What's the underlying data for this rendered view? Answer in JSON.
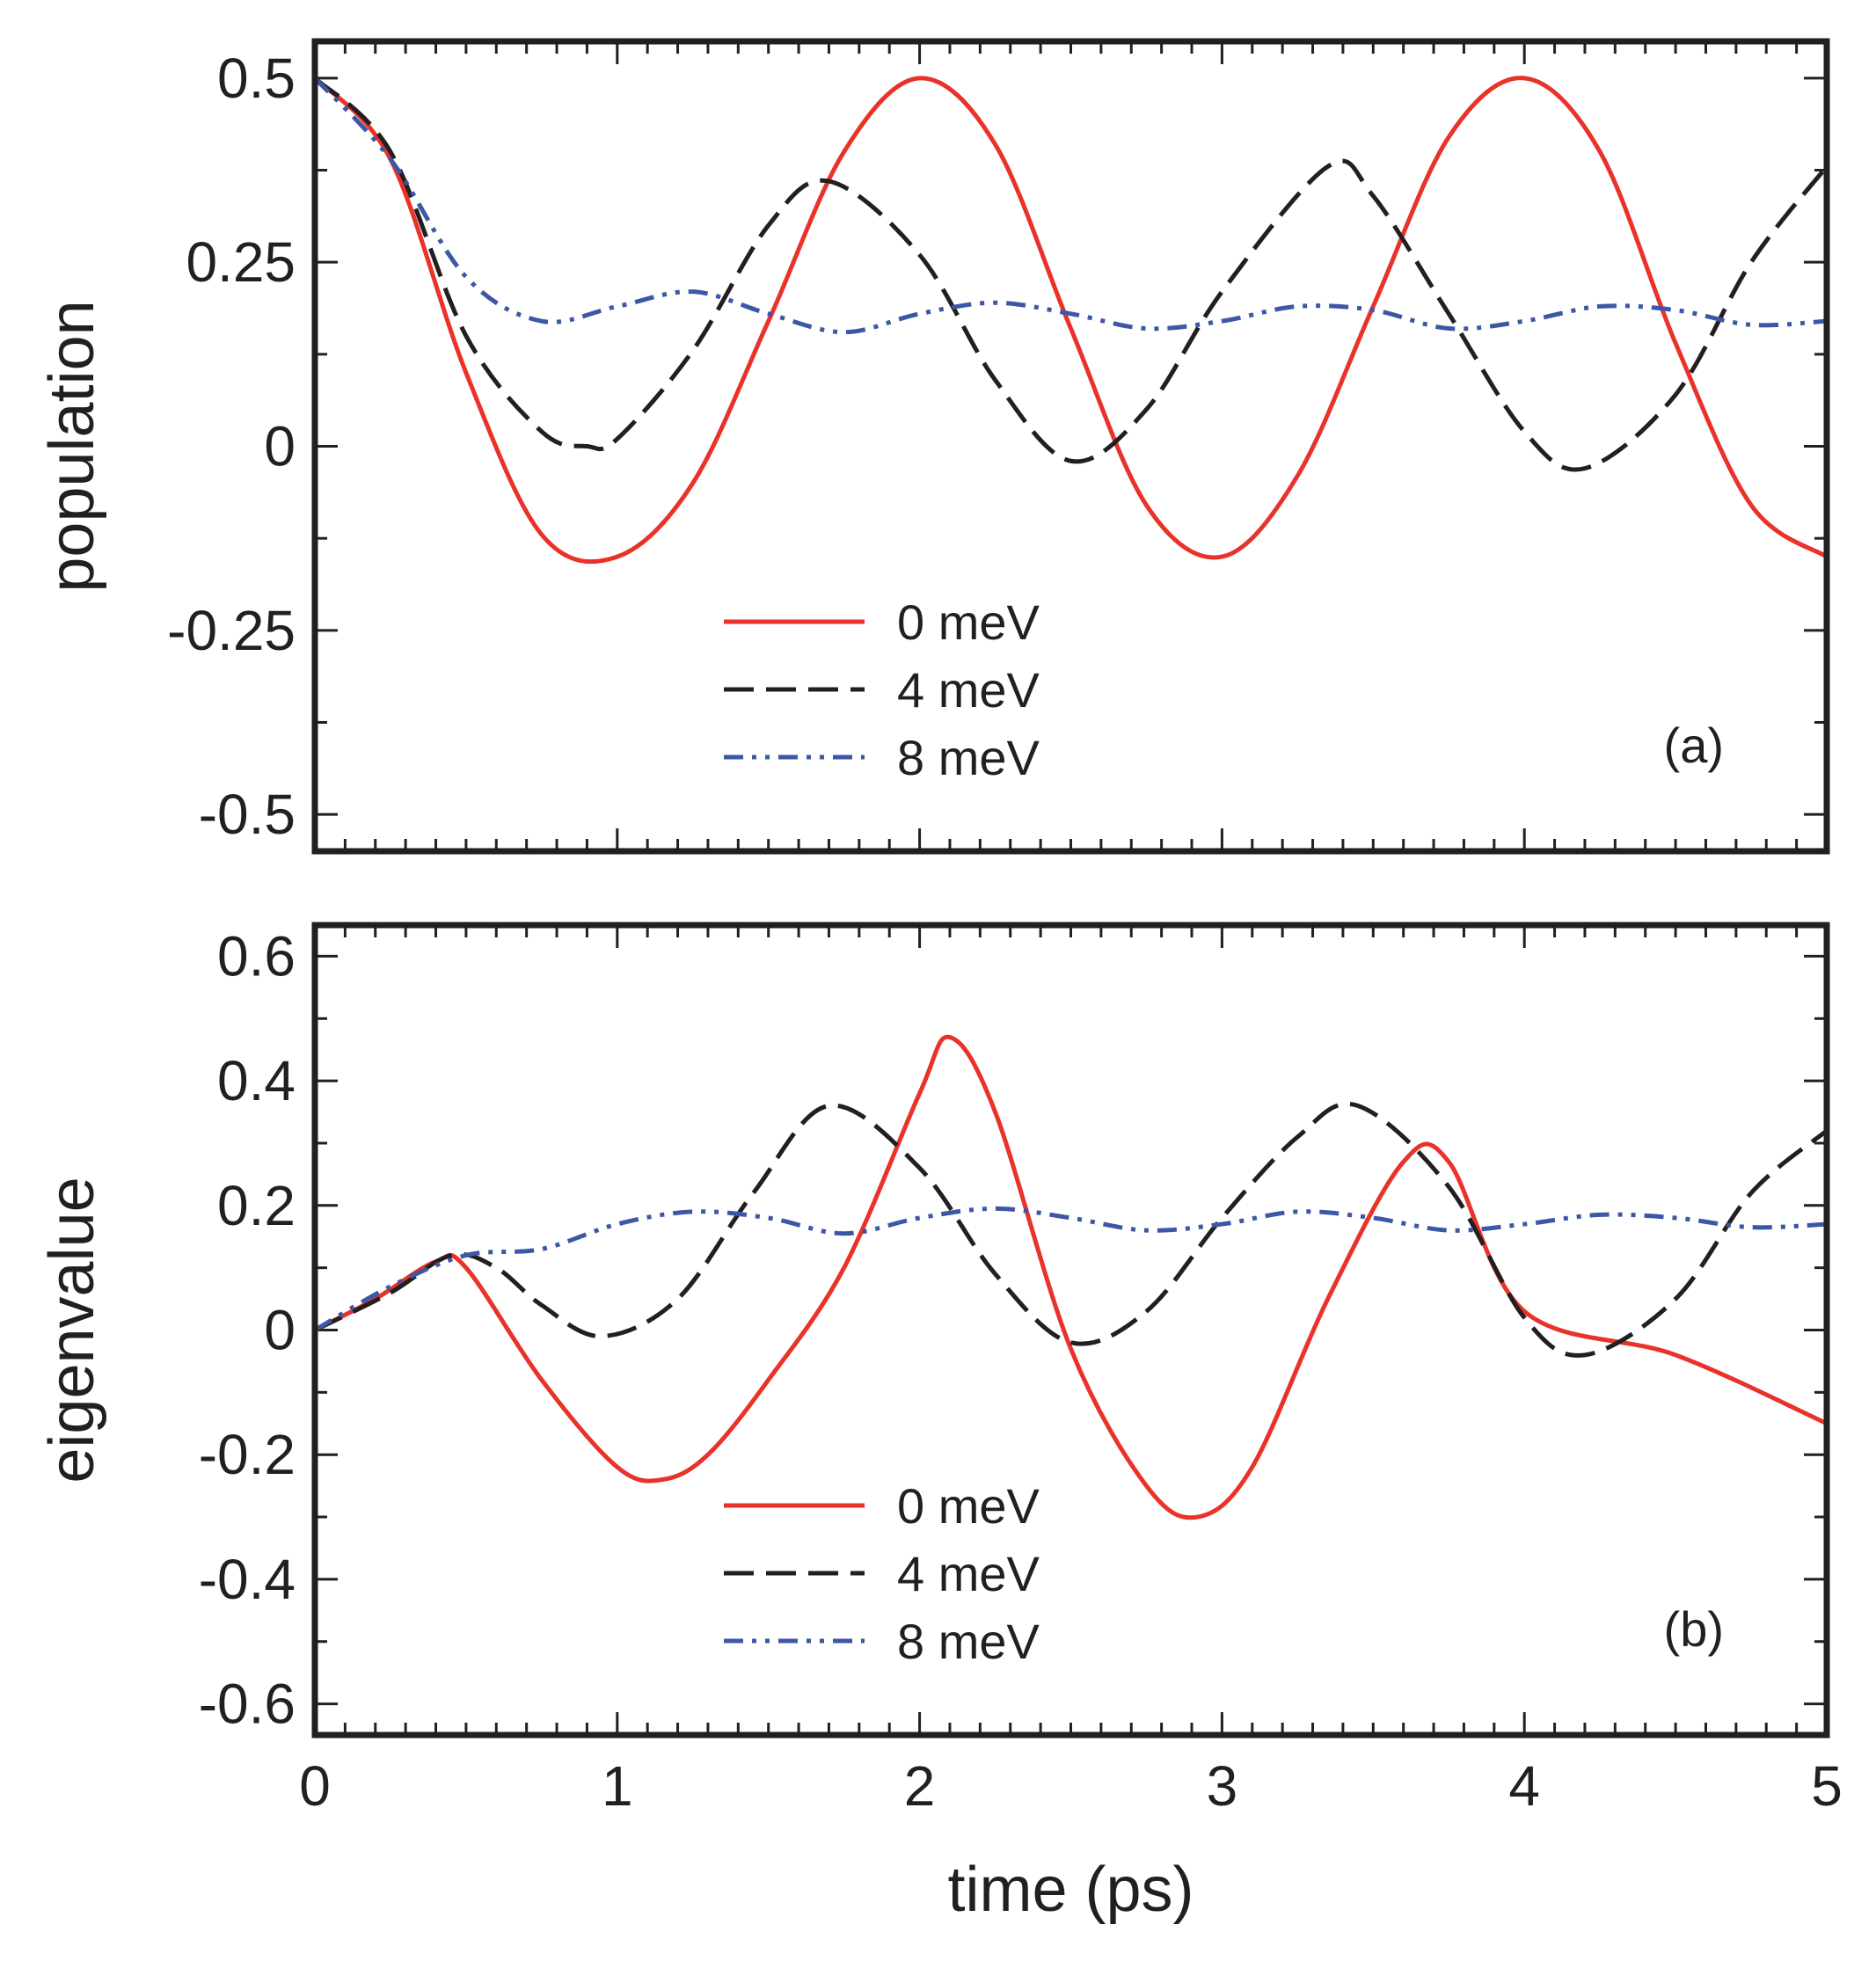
{
  "chart_data": [
    {
      "type": "line",
      "panel_label": "(a)",
      "ylabel": "population",
      "xlabel": "",
      "xlim": [
        0,
        5
      ],
      "ylim": [
        -0.55,
        0.55
      ],
      "xticks": [
        "",
        "",
        "",
        "",
        "",
        ""
      ],
      "yticks": [
        {
          "value": 0.5,
          "label": "0.5"
        },
        {
          "value": 0.25,
          "label": "0.25"
        },
        {
          "value": 0,
          "label": "0"
        },
        {
          "value": -0.25,
          "label": "-0.25"
        },
        {
          "value": -0.5,
          "label": "-0.5"
        }
      ],
      "legend_position": "bottom-center",
      "series": [
        {
          "name": "0 meV",
          "color": "#e8322a",
          "style": "solid",
          "x": [
            0,
            0.25,
            0.5,
            0.75,
            1.0,
            1.25,
            1.5,
            1.75,
            2.0,
            2.25,
            2.5,
            2.75,
            3.0,
            3.25,
            3.5,
            3.75,
            4.0,
            4.25,
            4.5,
            4.75,
            5.0
          ],
          "y": [
            0.5,
            0.39,
            0.1,
            -0.12,
            -0.15,
            -0.05,
            0.17,
            0.4,
            0.5,
            0.41,
            0.16,
            -0.08,
            -0.15,
            -0.04,
            0.19,
            0.42,
            0.5,
            0.4,
            0.14,
            -0.08,
            -0.15
          ]
        },
        {
          "name": "4 meV",
          "color": "#231f20",
          "style": "dashed",
          "x": [
            0,
            0.25,
            0.5,
            0.75,
            0.9,
            1.0,
            1.25,
            1.5,
            1.7,
            2.0,
            2.25,
            2.5,
            2.75,
            3.0,
            3.35,
            3.5,
            3.75,
            4.0,
            4.2,
            4.5,
            4.75,
            5.0
          ],
          "y": [
            0.5,
            0.4,
            0.15,
            0.02,
            0.0,
            0.01,
            0.13,
            0.3,
            0.36,
            0.26,
            0.09,
            -0.02,
            0.05,
            0.21,
            0.38,
            0.34,
            0.18,
            0.02,
            -0.03,
            0.07,
            0.25,
            0.38
          ]
        },
        {
          "name": "8 meV",
          "color": "#3c57a5",
          "style": "dash-dot",
          "x": [
            0,
            0.25,
            0.5,
            0.75,
            1.0,
            1.25,
            1.5,
            1.75,
            2.0,
            2.25,
            2.5,
            2.75,
            3.0,
            3.25,
            3.5,
            3.75,
            4.0,
            4.25,
            4.5,
            4.75,
            5.0
          ],
          "y": [
            0.5,
            0.39,
            0.23,
            0.17,
            0.19,
            0.21,
            0.18,
            0.155,
            0.18,
            0.195,
            0.18,
            0.16,
            0.17,
            0.19,
            0.185,
            0.16,
            0.17,
            0.19,
            0.185,
            0.165,
            0.17
          ]
        }
      ]
    },
    {
      "type": "line",
      "panel_label": "(b)",
      "ylabel": "eigenvalue",
      "xlabel": "time (ps)",
      "xlim": [
        0,
        5
      ],
      "ylim": [
        -0.65,
        0.65
      ],
      "xticks": [
        "0",
        "1",
        "2",
        "3",
        "4",
        "5"
      ],
      "yticks": [
        {
          "value": 0.6,
          "label": "0.6"
        },
        {
          "value": 0.4,
          "label": "0.4"
        },
        {
          "value": 0.2,
          "label": "0.2"
        },
        {
          "value": 0,
          "label": "0"
        },
        {
          "value": -0.2,
          "label": "-0.2"
        },
        {
          "value": -0.4,
          "label": "-0.4"
        },
        {
          "value": -0.6,
          "label": "-0.6"
        }
      ],
      "legend_position": "bottom-center",
      "series": [
        {
          "name": "0 meV",
          "color": "#e8322a",
          "style": "solid",
          "x": [
            0,
            0.2,
            0.4,
            0.5,
            0.75,
            1.0,
            1.15,
            1.3,
            1.5,
            1.75,
            2.0,
            2.1,
            2.25,
            2.5,
            2.75,
            2.92,
            3.1,
            3.35,
            3.6,
            3.75,
            4.0,
            4.5,
            5.0
          ],
          "y": [
            0,
            0.05,
            0.11,
            0.1,
            -0.08,
            -0.22,
            -0.24,
            -0.2,
            -0.08,
            0.1,
            0.38,
            0.47,
            0.35,
            -0.03,
            -0.25,
            -0.3,
            -0.22,
            0.05,
            0.27,
            0.27,
            0.03,
            -0.04,
            -0.15
          ]
        },
        {
          "name": "4 meV",
          "color": "#231f20",
          "style": "dashed",
          "x": [
            0,
            0.25,
            0.45,
            0.6,
            0.75,
            0.95,
            1.2,
            1.45,
            1.7,
            2.0,
            2.25,
            2.5,
            2.75,
            3.0,
            3.25,
            3.45,
            3.75,
            4.0,
            4.2,
            4.5,
            4.75,
            5.0
          ],
          "y": [
            0,
            0.06,
            0.12,
            0.1,
            0.04,
            -0.01,
            0.05,
            0.22,
            0.36,
            0.26,
            0.09,
            -0.02,
            0.03,
            0.18,
            0.31,
            0.36,
            0.23,
            0.02,
            -0.04,
            0.05,
            0.22,
            0.32
          ]
        },
        {
          "name": "8 meV",
          "color": "#3c57a5",
          "style": "dash-dot",
          "x": [
            0,
            0.25,
            0.5,
            0.75,
            1.0,
            1.25,
            1.5,
            1.75,
            2.0,
            2.25,
            2.5,
            2.75,
            3.0,
            3.25,
            3.5,
            3.75,
            4.0,
            4.25,
            4.5,
            4.75,
            5.0
          ],
          "y": [
            0,
            0.07,
            0.12,
            0.13,
            0.17,
            0.19,
            0.18,
            0.155,
            0.18,
            0.195,
            0.18,
            0.16,
            0.17,
            0.19,
            0.18,
            0.16,
            0.17,
            0.185,
            0.18,
            0.165,
            0.17
          ]
        }
      ]
    }
  ]
}
